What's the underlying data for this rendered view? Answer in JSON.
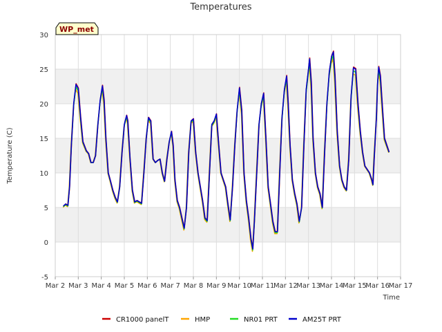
{
  "chart_data": {
    "type": "line",
    "title": "Temperatures",
    "xlabel": "Time",
    "ylabel": "Temperature (C)",
    "badge": "WP_met",
    "ylim": [
      -5,
      30
    ],
    "xlim": [
      0,
      15
    ],
    "y_ticks": [
      -5,
      0,
      5,
      10,
      15,
      20,
      25,
      30
    ],
    "x_ticks": [
      {
        "v": 0,
        "label": "Mar 2"
      },
      {
        "v": 1,
        "label": "Mar 3"
      },
      {
        "v": 2,
        "label": "Mar 4"
      },
      {
        "v": 3,
        "label": "Mar 5"
      },
      {
        "v": 4,
        "label": "Mar 6"
      },
      {
        "v": 5,
        "label": "Mar 7"
      },
      {
        "v": 6,
        "label": "Mar 8"
      },
      {
        "v": 7,
        "label": "Mar 9"
      },
      {
        "v": 8,
        "label": "Mar 10"
      },
      {
        "v": 9,
        "label": "Mar 11"
      },
      {
        "v": 10,
        "label": "Mar 12"
      },
      {
        "v": 11,
        "label": "Mar 13"
      },
      {
        "v": 12,
        "label": "Mar 14"
      },
      {
        "v": 13,
        "label": "Mar 15"
      },
      {
        "v": 14,
        "label": "Mar 16"
      },
      {
        "v": 15,
        "label": "Mar 17"
      }
    ],
    "x_unit": "days since Mar 2",
    "series": [
      {
        "name": "CR1000 panelT",
        "color": "#cc0000",
        "offset": [
          0.12,
          0.12
        ]
      },
      {
        "name": "HMP",
        "color": "#ffa500",
        "offset": [
          -0.3,
          -1.0
        ]
      },
      {
        "name": "NR01 PRT",
        "color": "#22dd22",
        "offset": [
          -0.05,
          -0.5
        ]
      },
      {
        "name": "AM25T PRT",
        "color": "#0000cc",
        "offset": [
          0,
          0
        ]
      }
    ],
    "base_points": [
      [
        0.35,
        5.2
      ],
      [
        0.45,
        5.5
      ],
      [
        0.55,
        5.3
      ],
      [
        0.62,
        8
      ],
      [
        0.7,
        14
      ],
      [
        0.8,
        20
      ],
      [
        0.9,
        22.8
      ],
      [
        1.0,
        22.2
      ],
      [
        1.1,
        18
      ],
      [
        1.2,
        14.5
      ],
      [
        1.35,
        13.2
      ],
      [
        1.45,
        12.8
      ],
      [
        1.55,
        11.5
      ],
      [
        1.65,
        11.5
      ],
      [
        1.75,
        12.5
      ],
      [
        1.85,
        17
      ],
      [
        1.95,
        20.5
      ],
      [
        2.05,
        22.6
      ],
      [
        2.12,
        20.5
      ],
      [
        2.2,
        15
      ],
      [
        2.3,
        10
      ],
      [
        2.4,
        8.8
      ],
      [
        2.5,
        7.5
      ],
      [
        2.6,
        6.5
      ],
      [
        2.7,
        5.8
      ],
      [
        2.8,
        8
      ],
      [
        2.9,
        13
      ],
      [
        3.0,
        17
      ],
      [
        3.1,
        18.3
      ],
      [
        3.15,
        17.5
      ],
      [
        3.25,
        12
      ],
      [
        3.35,
        7.5
      ],
      [
        3.45,
        5.8
      ],
      [
        3.55,
        6
      ],
      [
        3.65,
        5.8
      ],
      [
        3.75,
        5.6
      ],
      [
        3.85,
        10
      ],
      [
        3.95,
        15
      ],
      [
        4.05,
        18
      ],
      [
        4.15,
        17.5
      ],
      [
        4.25,
        12
      ],
      [
        4.35,
        11.5
      ],
      [
        4.45,
        11.8
      ],
      [
        4.55,
        12
      ],
      [
        4.65,
        10
      ],
      [
        4.75,
        8.8
      ],
      [
        4.85,
        12
      ],
      [
        4.95,
        14.5
      ],
      [
        5.05,
        16
      ],
      [
        5.12,
        14
      ],
      [
        5.2,
        9
      ],
      [
        5.3,
        6
      ],
      [
        5.4,
        5
      ],
      [
        5.5,
        3.5
      ],
      [
        5.6,
        2
      ],
      [
        5.7,
        5
      ],
      [
        5.8,
        13
      ],
      [
        5.9,
        17.5
      ],
      [
        6.0,
        17.8
      ],
      [
        6.1,
        13
      ],
      [
        6.2,
        10
      ],
      [
        6.3,
        8
      ],
      [
        6.4,
        6
      ],
      [
        6.5,
        3.5
      ],
      [
        6.6,
        3.1
      ],
      [
        6.7,
        10
      ],
      [
        6.8,
        17
      ],
      [
        6.9,
        17.5
      ],
      [
        7.0,
        18.5
      ],
      [
        7.1,
        14
      ],
      [
        7.2,
        10
      ],
      [
        7.3,
        9
      ],
      [
        7.4,
        8
      ],
      [
        7.5,
        5.5
      ],
      [
        7.6,
        3.2
      ],
      [
        7.7,
        8
      ],
      [
        7.8,
        14
      ],
      [
        7.9,
        19
      ],
      [
        8.0,
        22.3
      ],
      [
        8.1,
        19
      ],
      [
        8.2,
        10
      ],
      [
        8.3,
        6
      ],
      [
        8.4,
        3.5
      ],
      [
        8.5,
        0.5
      ],
      [
        8.58,
        -1
      ],
      [
        8.65,
        3
      ],
      [
        8.75,
        10
      ],
      [
        8.85,
        17
      ],
      [
        8.95,
        20
      ],
      [
        9.05,
        21.5
      ],
      [
        9.15,
        15
      ],
      [
        9.25,
        8
      ],
      [
        9.35,
        5.5
      ],
      [
        9.45,
        3
      ],
      [
        9.55,
        1.5
      ],
      [
        9.65,
        1.5
      ],
      [
        9.75,
        10
      ],
      [
        9.85,
        18
      ],
      [
        9.95,
        22
      ],
      [
        10.05,
        24
      ],
      [
        10.12,
        20
      ],
      [
        10.2,
        14
      ],
      [
        10.3,
        9
      ],
      [
        10.4,
        7
      ],
      [
        10.5,
        5.5
      ],
      [
        10.6,
        3
      ],
      [
        10.7,
        5
      ],
      [
        10.8,
        14
      ],
      [
        10.9,
        22
      ],
      [
        11.0,
        25
      ],
      [
        11.05,
        26.5
      ],
      [
        11.12,
        23
      ],
      [
        11.2,
        15
      ],
      [
        11.3,
        10
      ],
      [
        11.4,
        8
      ],
      [
        11.5,
        7
      ],
      [
        11.6,
        5
      ],
      [
        11.7,
        13
      ],
      [
        11.8,
        20
      ],
      [
        11.9,
        24.5
      ],
      [
        12.0,
        26.8
      ],
      [
        12.08,
        27.5
      ],
      [
        12.15,
        24
      ],
      [
        12.25,
        16
      ],
      [
        12.35,
        11
      ],
      [
        12.45,
        9
      ],
      [
        12.55,
        8
      ],
      [
        12.65,
        7.5
      ],
      [
        12.75,
        12
      ],
      [
        12.85,
        21
      ],
      [
        12.95,
        25.2
      ],
      [
        13.05,
        25
      ],
      [
        13.15,
        20
      ],
      [
        13.25,
        16
      ],
      [
        13.35,
        13
      ],
      [
        13.45,
        11
      ],
      [
        13.55,
        10.5
      ],
      [
        13.65,
        10
      ],
      [
        13.75,
        9
      ],
      [
        13.8,
        8.3
      ],
      [
        13.85,
        12
      ],
      [
        13.95,
        18
      ],
      [
        14.0,
        23
      ],
      [
        14.05,
        25.3
      ],
      [
        14.12,
        24
      ],
      [
        14.2,
        20
      ],
      [
        14.3,
        15
      ],
      [
        14.4,
        14
      ],
      [
        14.45,
        13.5
      ],
      [
        14.5,
        13
      ]
    ]
  },
  "legend": {
    "items": [
      {
        "label": "CR1000 panelT",
        "color": "#cc0000"
      },
      {
        "label": "HMP",
        "color": "#ffa500"
      },
      {
        "label": "NR01 PRT",
        "color": "#22dd22"
      },
      {
        "label": "AM25T PRT",
        "color": "#0000cc"
      }
    ]
  },
  "colors": {
    "band": "#f0f0f0",
    "grid": "#dddddd",
    "badge_fill": "#ffffcc"
  }
}
